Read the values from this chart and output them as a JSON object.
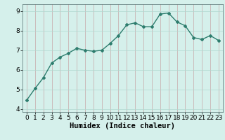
{
  "x": [
    0,
    1,
    2,
    3,
    4,
    5,
    6,
    7,
    8,
    9,
    10,
    11,
    12,
    13,
    14,
    15,
    16,
    17,
    18,
    19,
    20,
    21,
    22,
    23
  ],
  "y": [
    4.45,
    5.05,
    5.6,
    6.35,
    6.65,
    6.85,
    7.1,
    7.0,
    6.95,
    7.0,
    7.35,
    7.75,
    8.3,
    8.4,
    8.2,
    8.2,
    8.85,
    8.9,
    8.45,
    8.25,
    7.65,
    7.55,
    7.75,
    7.5
  ],
  "line_color": "#2e7d6e",
  "marker": "D",
  "marker_size": 2.0,
  "bg_color": "#d5f0eb",
  "grid_color_v": "#c8a8a8",
  "grid_color_h": "#b0d8d0",
  "xlabel": "Humidex (Indice chaleur)",
  "xlim": [
    -0.5,
    23.5
  ],
  "ylim": [
    3.85,
    9.35
  ],
  "yticks": [
    4,
    5,
    6,
    7,
    8,
    9
  ],
  "xticks": [
    0,
    1,
    2,
    3,
    4,
    5,
    6,
    7,
    8,
    9,
    10,
    11,
    12,
    13,
    14,
    15,
    16,
    17,
    18,
    19,
    20,
    21,
    22,
    23
  ],
  "xlabel_fontsize": 7.5,
  "tick_fontsize": 6.5,
  "line_width": 1.0
}
